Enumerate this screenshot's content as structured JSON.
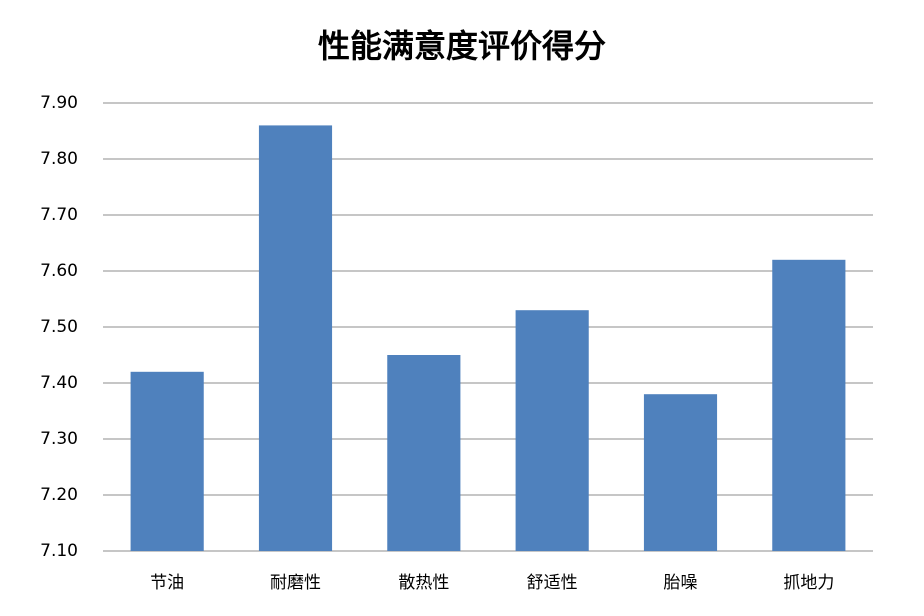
{
  "chart_data": {
    "type": "bar",
    "title": "性能满意度评价得分",
    "categories": [
      "节油",
      "耐磨性",
      "散热性",
      "舒适性",
      "胎噪",
      "抓地力"
    ],
    "values": [
      7.42,
      7.86,
      7.45,
      7.53,
      7.38,
      7.62
    ],
    "color": "#4f81bd",
    "ylim": [
      7.1,
      7.9
    ],
    "yticks": [
      {
        "value": 7.1,
        "label": "7.10"
      },
      {
        "value": 7.2,
        "label": "7.20"
      },
      {
        "value": 7.3,
        "label": "7.30"
      },
      {
        "value": 7.4,
        "label": "7.40"
      },
      {
        "value": 7.5,
        "label": "7.50"
      },
      {
        "value": 7.6,
        "label": "7.60"
      },
      {
        "value": 7.7,
        "label": "7.70"
      },
      {
        "value": 7.8,
        "label": "7.80"
      },
      {
        "value": 7.9,
        "label": "7.90"
      }
    ],
    "grid": true
  }
}
